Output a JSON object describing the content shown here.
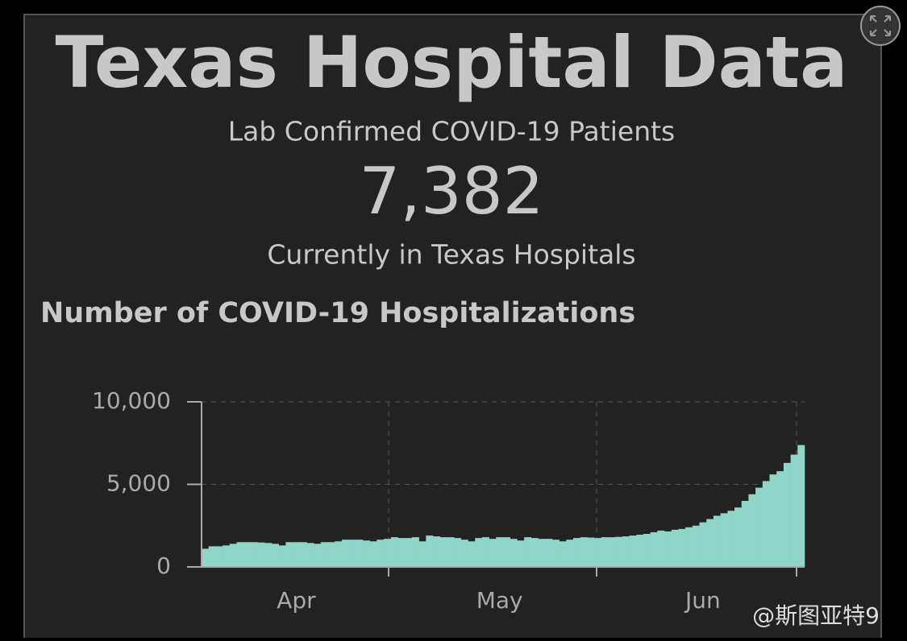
{
  "header": {
    "title": "Texas Hospital Data",
    "subtitle": "Lab Confirmed COVID-19 Patients",
    "count": "7,382",
    "caption": "Currently in Texas Hospitals"
  },
  "watermark": "@斯图亚特9",
  "chart_data": {
    "type": "bar",
    "title": "Number of COVID-19 Hospitalizations",
    "color": "#8fd6c8",
    "grid": true,
    "ylim": [
      0,
      10000
    ],
    "yticks": [
      0,
      {
        "value": 5000,
        "label": "5,000"
      },
      {
        "value": 10000,
        "label": "10,000"
      }
    ],
    "categories": [
      null,
      null,
      null,
      null,
      null,
      null,
      null,
      null,
      null,
      null,
      null,
      null,
      null,
      "Apr",
      null,
      null,
      null,
      null,
      null,
      null,
      null,
      null,
      null,
      null,
      null,
      null,
      null,
      null,
      null,
      null,
      null,
      null,
      null,
      null,
      null,
      null,
      null,
      null,
      null,
      null,
      null,
      null,
      "May",
      null,
      null,
      null,
      null,
      null,
      null,
      null,
      null,
      null,
      null,
      null,
      null,
      null,
      null,
      null,
      null,
      null,
      null,
      null,
      null,
      null,
      null,
      null,
      null,
      null,
      null,
      null,
      null,
      "Jun",
      null,
      null,
      null,
      null,
      null,
      null,
      null,
      null,
      null,
      null,
      null,
      null,
      null,
      null
    ],
    "values": [
      1100,
      1250,
      1250,
      1300,
      1400,
      1500,
      1500,
      1500,
      1480,
      1450,
      1400,
      1300,
      1500,
      1500,
      1500,
      1450,
      1400,
      1500,
      1500,
      1550,
      1650,
      1650,
      1650,
      1600,
      1550,
      1650,
      1700,
      1800,
      1750,
      1750,
      1800,
      1550,
      1900,
      1850,
      1800,
      1800,
      1750,
      1650,
      1550,
      1750,
      1800,
      1700,
      1800,
      1800,
      1700,
      1600,
      1800,
      1750,
      1700,
      1700,
      1650,
      1550,
      1650,
      1750,
      1800,
      1780,
      1750,
      1800,
      1800,
      1820,
      1850,
      1900,
      1950,
      2000,
      2100,
      2200,
      2150,
      2250,
      2300,
      2400,
      2500,
      2700,
      2900,
      3100,
      3250,
      3400,
      3600,
      4000,
      4400,
      4800,
      5200,
      5600,
      5800,
      6300,
      6800,
      7382
    ]
  }
}
